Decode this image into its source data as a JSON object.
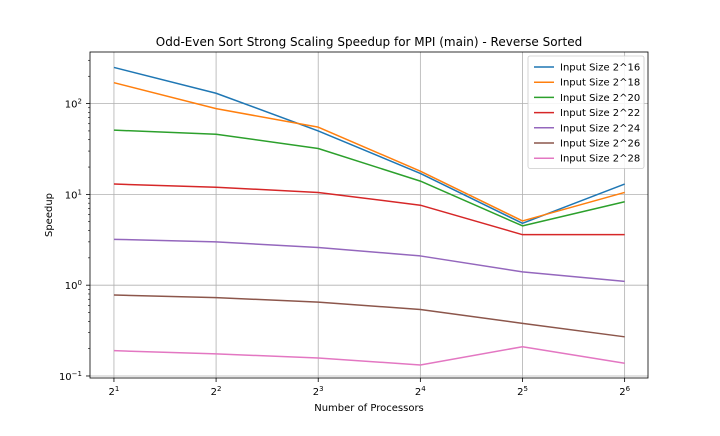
{
  "chart_data": {
    "type": "line",
    "title": "Odd-Even Sort Strong Scaling Speedup for MPI (main) - Reverse Sorted",
    "xlabel": "Number of Processors",
    "ylabel": "Speedup",
    "x_scale": "log2",
    "y_scale": "log10",
    "x": [
      2,
      4,
      8,
      16,
      32,
      64
    ],
    "x_tick_labels": [
      {
        "base": "2",
        "exp": "1"
      },
      {
        "base": "2",
        "exp": "2"
      },
      {
        "base": "2",
        "exp": "3"
      },
      {
        "base": "2",
        "exp": "4"
      },
      {
        "base": "2",
        "exp": "5"
      },
      {
        "base": "2",
        "exp": "6"
      }
    ],
    "y_ticks": [
      0.1,
      1,
      10,
      100
    ],
    "y_tick_labels": [
      {
        "base": "10",
        "exp": "−1"
      },
      {
        "base": "10",
        "exp": "0"
      },
      {
        "base": "10",
        "exp": "1"
      },
      {
        "base": "10",
        "exp": "2"
      }
    ],
    "xlim": [
      1.7,
      75
    ],
    "ylim": [
      0.095,
      370
    ],
    "grid": true,
    "legend_position": "top-right",
    "series": [
      {
        "name": "Input Size 2^16",
        "color": "#1f77b4",
        "values": [
          250,
          130,
          50,
          17,
          4.8,
          13
        ]
      },
      {
        "name": "Input Size 2^18",
        "color": "#ff7f0e",
        "values": [
          170,
          88,
          55,
          18,
          5.1,
          10.5
        ]
      },
      {
        "name": "Input Size 2^20",
        "color": "#2ca02c",
        "values": [
          51,
          46,
          32,
          14,
          4.5,
          8.3
        ]
      },
      {
        "name": "Input Size 2^22",
        "color": "#d62728",
        "values": [
          13,
          12,
          10.5,
          7.6,
          3.6,
          3.6
        ]
      },
      {
        "name": "Input Size 2^24",
        "color": "#9467bd",
        "values": [
          3.2,
          3.0,
          2.6,
          2.1,
          1.4,
          1.1
        ]
      },
      {
        "name": "Input Size 2^26",
        "color": "#8c564b",
        "values": [
          0.78,
          0.73,
          0.65,
          0.54,
          0.38,
          0.27
        ]
      },
      {
        "name": "Input Size 2^28",
        "color": "#e377c2",
        "values": [
          0.19,
          0.175,
          0.158,
          0.132,
          0.21,
          0.138
        ]
      }
    ]
  }
}
